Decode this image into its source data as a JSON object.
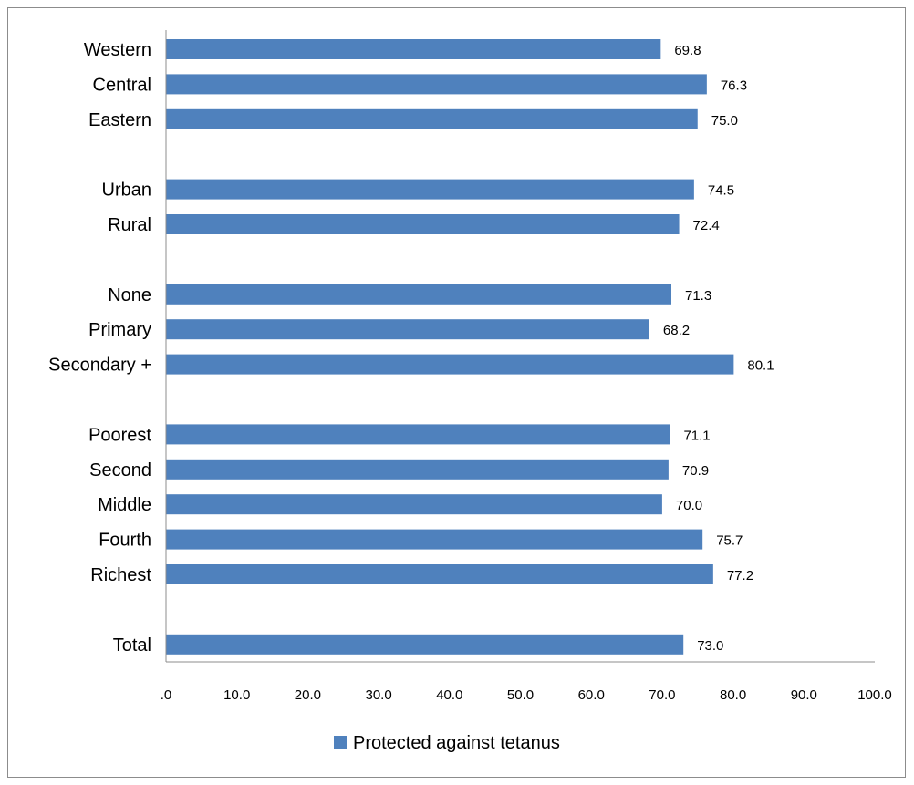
{
  "chart_data": {
    "type": "bar",
    "orientation": "horizontal",
    "categories": [
      "Western",
      "Central",
      "Eastern",
      "Urban",
      "Rural",
      "None",
      "Primary",
      "Secondary +",
      "Poorest",
      "Second",
      "Middle",
      "Fourth",
      "Richest",
      "Total"
    ],
    "groups": [
      [
        "Western",
        "Central",
        "Eastern"
      ],
      [
        "Urban",
        "Rural"
      ],
      [
        "None",
        "Primary",
        "Secondary +"
      ],
      [
        "Poorest",
        "Second",
        "Middle",
        "Fourth",
        "Richest"
      ],
      [
        "Total"
      ]
    ],
    "series": [
      {
        "name": "Protected against tetanus",
        "color": "#4f81bd",
        "values": [
          69.8,
          76.3,
          75.0,
          74.5,
          72.4,
          71.3,
          68.2,
          80.1,
          71.1,
          70.9,
          70.0,
          75.7,
          77.2,
          73.0
        ],
        "data_labels": [
          "69.8",
          "76.3",
          "75.0",
          "74.5",
          "72.4",
          "71.3",
          "68.2",
          "80.1",
          "71.1",
          "70.9",
          "70.0",
          "75.7",
          "77.2",
          "73.0"
        ]
      }
    ],
    "xlim": [
      0,
      100
    ],
    "x_ticks": [
      0,
      10,
      20,
      30,
      40,
      50,
      60,
      70,
      80,
      90,
      100
    ],
    "x_tick_labels": [
      ".0",
      "10.0",
      "20.0",
      "30.0",
      "40.0",
      "50.0",
      "60.0",
      "70.0",
      "80.0",
      "90.0",
      "100.0"
    ],
    "title": "",
    "xlabel": "",
    "ylabel": "",
    "grid": false,
    "legend": {
      "position": "bottom",
      "entries": [
        "Protected against tetanus"
      ]
    }
  }
}
